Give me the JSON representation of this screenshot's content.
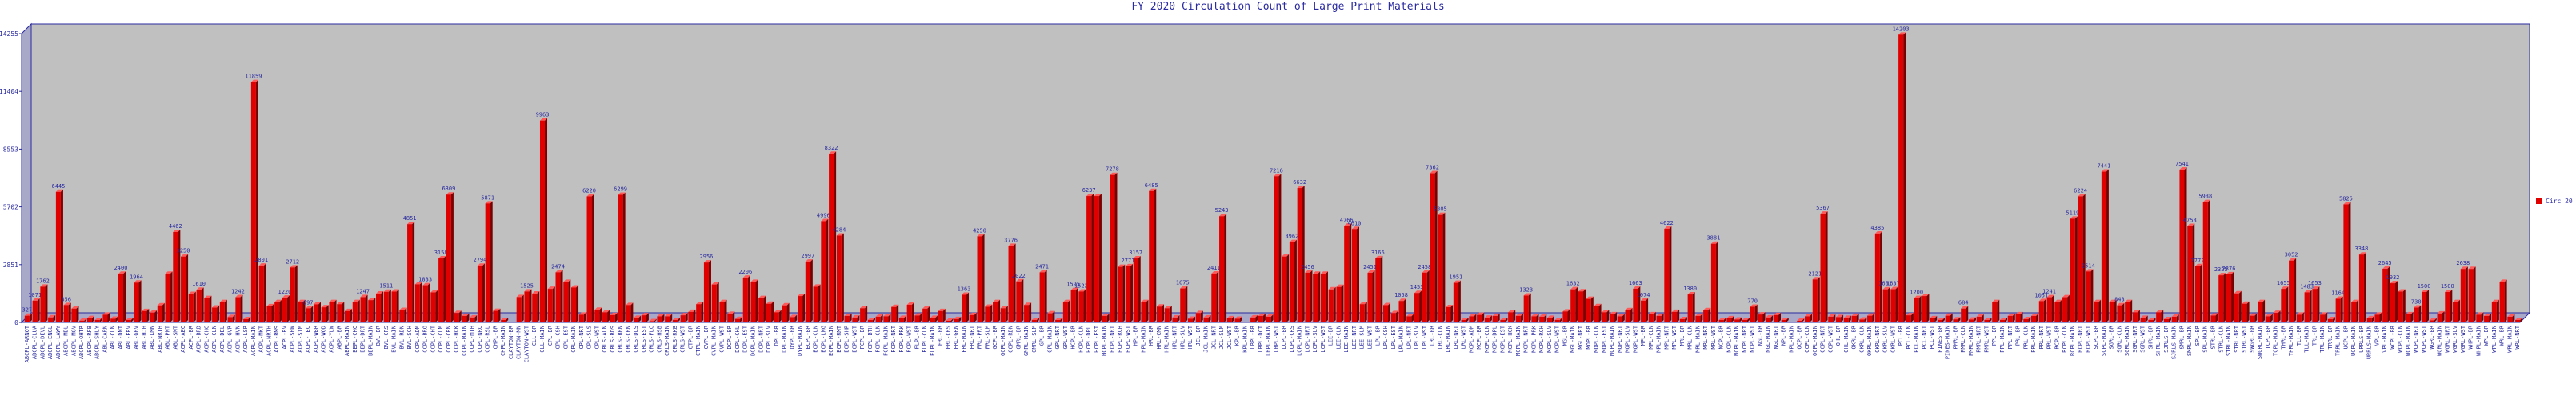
{
  "chart_data": {
    "type": "bar",
    "title": "FY 2020 Circulation Count of Large Print  Materials",
    "xlabel": "",
    "ylabel": "",
    "ylim": [
      0,
      14255
    ],
    "yticks": [
      "0",
      "2851",
      "5702",
      "8553",
      "11404",
      "14255"
    ],
    "grid": false,
    "legend_position": "right",
    "series": [
      {
        "name": "Circ 20",
        "color": "#e00000",
        "categories": [
          "ABCPL-ARNOT",
          "ABCPL-CLUA",
          "ABCPL-DEVL",
          "ABCPL-ENGL",
          "ABCPL-LAWY",
          "ABCPL-MDL",
          "ABCPL-MGV",
          "ABCPL-OHTR",
          "ABCPL-RFB",
          "ABCPL-SHLY",
          "ABL-CARN",
          "ABL-CLN",
          "ABL-DNT",
          "ABL-ERV",
          "ABL-GRV",
          "ABL-HJH",
          "ABL-LMN",
          "ABL-NRTH",
          "ABL-PNT",
          "ABL-SMT",
          "ACPL-AEC",
          "ACPL-BR",
          "ACPL-BRD",
          "ACPL-CHC",
          "ACPL-CLN",
          "ACPL-DEL",
          "ACPL-GVR",
          "ACPL-HVN",
          "ACPL-LSR",
          "ACPL-MAIN",
          "ACPL-MKT",
          "ACPL-NRTH",
          "ACPL-RMS",
          "ACPL-RV",
          "ACPL-SHW",
          "ACPL-STM",
          "ACPL-TEC",
          "ACPL-WBR",
          "ACPL-WOD",
          "ACPL-YLW",
          "ABPL-BR",
          "ABPL-MAIN",
          "BEPL-CHC",
          "BEPL-DRT",
          "BEPL-MAIN",
          "BVL-BR",
          "BVL-CRS",
          "BVL-MAIN",
          "BVL-RDN",
          "BVL-SCH",
          "CCPL-ADM",
          "CCPL-BRO",
          "CCPL-CHT",
          "CCPL-CLM",
          "CCPL-CRN",
          "CCPL-HCK",
          "CCPL-MAIN",
          "CCPL-MTH",
          "CCPL-NRC",
          "CCPL-RSL",
          "CHPL-BR",
          "CHPL-MAIN",
          "CLAYTON-BR",
          "CLAYTON-MN",
          "CLAYTON-WST",
          "CLL-BR",
          "CLL-MAIN",
          "CPL-BR",
          "CPL-CSH",
          "CPL-EST",
          "CPL-MAIN",
          "CPL-NRT",
          "CPL-SLS",
          "CPL-WST",
          "CRLS-ALN",
          "CRLS-BDS",
          "CRLS-BRN",
          "CRLS-CRN",
          "CRLS-DLS",
          "CRLS-EST",
          "CRLS-FLC",
          "CRLS-HSB",
          "CRLS-MAIN",
          "CRLS-RKB",
          "CRLS-WST",
          "CTPL-BR",
          "CTPL-MAIN",
          "CVPL-BR",
          "CVPL-MAIN",
          "CVPL-WST",
          "DCPL-BR",
          "DCPL-CHL",
          "DCPL-EST",
          "DCPL-MAIN",
          "DCPL-NRT",
          "DCPL-SLV",
          "DPL-BR",
          "DPL-MAIN",
          "DYPL-BR",
          "DYPL-MAIN",
          "ECPL-BR",
          "ECPL-CLN",
          "ECPL-LNG",
          "ECPL-MAIN",
          "ECPL-RMT",
          "ECPL-SHP",
          "ECPL-WST",
          "FCPL-BR",
          "FCPL-BTH",
          "FCPL-CLN",
          "FCPL-MAIN",
          "FCPL-NRT",
          "FCPL-PRK",
          "FCPL-WST",
          "FLPL-BR",
          "FLPL-CLN",
          "FLPL-MAIN",
          "FRL-BR",
          "FRL-CRS",
          "FRL-GRN",
          "FRL-MAIN",
          "FRL-NRT",
          "FRL-PRT",
          "FRL-SLM",
          "GCPL-BR",
          "GCPL-MAIN",
          "GCPL-RDN",
          "GMRL-BR",
          "GMRL-MAIN",
          "GMRL-SLM",
          "GPL-BR",
          "GPL-MAIN",
          "GPL-NRT",
          "GPL-WST",
          "HCPL-BR",
          "HCPL-CLN",
          "HCPL-DPL",
          "HCPL-EST",
          "HCPL-MAIN",
          "HCPL-NRT",
          "HCPL-RCH",
          "HCPL-WST",
          "HPL-BR",
          "HPL-MAIN",
          "HRL-BR",
          "HRL-CMN",
          "HRL-MAIN",
          "HRL-NRT",
          "HRL-SLV",
          "HRL-WST",
          "JCL-BR",
          "JCL-MAIN",
          "JCL-NRT",
          "JCL-SLM",
          "JCL-WST",
          "KPL-BR",
          "KPL-MAIN",
          "LBPL-BR",
          "LBPL-DCT",
          "LBPL-MAIN",
          "LBPL-WST",
          "LCPL-BR",
          "LCPL-CRS",
          "LCPL-MAIN",
          "LCPL-NRT",
          "LCPL-SLV",
          "LCPL-WST",
          "LEE-BR",
          "LEE-CLN",
          "LEE-MAIN",
          "LEE-NRT",
          "LEE-SLM",
          "LEE-WST",
          "LPL-BR",
          "LPL-CSH",
          "LPL-EST",
          "LPL-MAIN",
          "LPL-NRT",
          "LPL-SLV",
          "LPL-WST",
          "LRL-BR",
          "LRL-CLN",
          "LRL-MAIN",
          "LRL-NRT",
          "LRL-WST",
          "MCPL-ADM",
          "MCPL-BR",
          "MCPL-CLN",
          "MCPL-DPL",
          "MCPL-EST",
          "MCPL-HCK",
          "MCPL-MAIN",
          "MCPL-NRT",
          "MCPL-PRK",
          "MCPL-RCH",
          "MCPL-SLV",
          "MCPL-WST",
          "MGL-BR",
          "MGL-MAIN",
          "MGL-NRT",
          "MOPL-BR",
          "MOPL-CLN",
          "MOPL-EST",
          "MOPL-MAIN",
          "MOPL-NRT",
          "MOPL-SLV",
          "MOPL-WST",
          "MPL-BR",
          "MPL-CLN",
          "MPL-MAIN",
          "MPL-NRT",
          "MPL-WST",
          "MRL-BR",
          "MRL-CLN",
          "MRL-MAIN",
          "MRL-NRT",
          "MRL-WST",
          "NCPL-BR",
          "NCPL-CLN",
          "NCPL-MAIN",
          "NCPL-NRT",
          "NCPL-WST",
          "NGL-BR",
          "NGL-MAIN",
          "NGL-NRT",
          "NPL-BR",
          "NPL-MAIN",
          "OCPL-BR",
          "OCPL-CLN",
          "OCPL-MAIN",
          "OCPL-NRT",
          "OCPL-WST",
          "OHL-BR",
          "OHL-MAIN",
          "OKRL-BR",
          "OKRL-CLN",
          "OKRL-MAIN",
          "OKRL-NRT",
          "OKRL-SLV",
          "OKRL-WST",
          "PCL-BR",
          "PCL-CLN",
          "PCL-MAIN",
          "PCL-NRT",
          "PCL-WST",
          "PINES-BR",
          "PINES-MAIN",
          "PMRL-BR",
          "PMRL-CLN",
          "PMRL-MAIN",
          "PMRL-NRT",
          "PMRL-WST",
          "PPL-BR",
          "PPL-MAIN",
          "PPL-NRT",
          "PRL-BR",
          "PRL-CLN",
          "PRL-MAIN",
          "PRL-NRT",
          "PRL-WST",
          "RCPL-BR",
          "RCPL-CLN",
          "RCPL-MAIN",
          "RCPL-NRT",
          "RCPL-WST",
          "SCPL-BR",
          "SCPL-MAIN",
          "SGRL-BR",
          "SGRL-CLN",
          "SGRL-MAIN",
          "SGRL-NRT",
          "SGRL-WST",
          "SHRL-BR",
          "SHRL-MAIN",
          "SJRLS-BR",
          "SJRLS-MAIN",
          "SMRL-BR",
          "SMRL-MAIN",
          "SPL-BR",
          "SPL-MAIN",
          "STRL-BR",
          "STRL-CLN",
          "STRL-MAIN",
          "STRL-NRT",
          "STRL-WST",
          "SWGRL-BR",
          "SWGRL-MAIN",
          "TCPL-BR",
          "TCPL-MAIN",
          "THRL-BR",
          "THRL-MAIN",
          "TLL-BR",
          "TLL-MAIN",
          "TRL-BR",
          "TRL-MAIN",
          "TRRL-BR",
          "TRRL-MAIN",
          "UCPL-BR",
          "UCPL-MAIN",
          "URRLS-BR",
          "URRLS-MAIN",
          "VPL-BR",
          "VPL-MAIN",
          "WCPL-BR",
          "WCPL-CLN",
          "WCPL-MAIN",
          "WCPL-NRT",
          "WCPL-WST",
          "WGRL-BR",
          "WGRL-MAIN",
          "WGRL-NRT",
          "WGRL-SLV",
          "WGRL-WST",
          "WHPL-BR",
          "WHPL-MAIN",
          "WPL-BR",
          "WPL-MAIN",
          "WRL-BR",
          "WRL-MAIN",
          "WRL-NRT"
        ],
        "values": [
          327,
          1071,
          1762,
          245,
          6445,
          856,
          682,
          85,
          210,
          120,
          380,
          180,
          2400,
          120,
          1964,
          560,
          480,
          840,
          2400,
          4462,
          3250,
          1400,
          1610,
          1200,
          730,
          1000,
          260,
          1242,
          160,
          11859,
          2801,
          795,
          1000,
          1220,
          2712,
          1000,
          697,
          890,
          745,
          1000,
          900,
          560,
          1000,
          1247,
          1100,
          1420,
          1511,
          1520,
          610,
          4851,
          1880,
          1833,
          1480,
          3158,
          6309,
          463,
          320,
          240,
          2794,
          5871,
          570,
          120,
          0,
          1250,
          1525,
          1420,
          9963,
          1654,
          2474,
          2000,
          1720,
          380,
          6220,
          620,
          500,
          360,
          6299,
          856,
          220,
          350,
          60,
          300,
          300,
          120,
          350,
          520,
          900,
          2956,
          1870,
          1000,
          420,
          170,
          2206,
          2000,
          1200,
          920,
          500,
          840,
          260,
          1300,
          2997,
          1760,
          4996,
          8322,
          4284,
          320,
          240,
          700,
          120,
          280,
          300,
          760,
          220,
          870,
          340,
          680,
          220,
          560,
          80,
          165,
          1363,
          360,
          4250,
          770,
          1000,
          700,
          3776,
          2022,
          860,
          120,
          2471,
          450,
          120,
          1000,
          1595,
          1522,
          6237,
          6237,
          320,
          7278,
          2740,
          2771,
          3157,
          1000,
          6485,
          780,
          700,
          240,
          1675,
          180,
          460,
          240,
          2411,
          5243,
          200,
          180,
          0,
          240,
          320,
          280,
          7216,
          3250,
          3962,
          6632,
          2456,
          2400,
          2400,
          1627,
          1750,
          4766,
          4610,
          900,
          2451,
          3166,
          850,
          460,
          1058,
          300,
          1453,
          2458,
          7362,
          5305,
          750,
          1951,
          120,
          300,
          370,
          230,
          320,
          120,
          500,
          320,
          1323,
          300,
          280,
          220,
          120,
          540,
          1632,
          1530,
          1160,
          800,
          500,
          400,
          300,
          600,
          1663,
          1074,
          400,
          320,
          4622,
          520,
          160,
          1380,
          320,
          600,
          3881,
          120,
          200,
          140,
          120,
          770,
          390,
          240,
          360,
          120,
          0,
          80,
          300,
          2121,
          5367,
          280,
          260,
          220,
          320,
          140,
          330,
          4385,
          1631,
          1637,
          14203,
          350,
          1200,
          1300,
          200,
          120,
          330,
          150,
          684,
          140,
          280,
          120,
          1000,
          120,
          320,
          400,
          160,
          320,
          1051,
          1241,
          1000,
          1241,
          5119,
          6224,
          2514,
          1000,
          7441,
          1000,
          843,
          1000,
          500,
          220,
          120,
          500,
          160,
          280,
          7541,
          4758,
          2772,
          5938,
          340,
          2325,
          2376,
          1430,
          920,
          330,
          1000,
          300,
          470,
          1655,
          3052,
          380,
          1483,
          1653,
          380,
          160,
          1164,
          5825,
          1000,
          3348,
          200,
          380,
          2645,
          1932,
          1520,
          400,
          730,
          1500,
          100,
          440,
          1500,
          1000,
          2638,
          2638,
          380,
          320,
          1000,
          2000,
          280,
          120
        ],
        "data_labels": [
          "327",
          "1071",
          "1762",
          "",
          "6445",
          "856",
          "",
          "",
          "",
          "",
          "",
          "",
          "2400",
          "",
          "1964",
          "",
          "",
          "",
          "",
          "4462",
          "3250",
          "",
          "1610",
          "",
          "",
          "",
          "",
          "1242",
          "",
          "11859",
          "2801",
          "",
          "",
          "1220",
          "2712",
          "",
          "697",
          "",
          "",
          "",
          "",
          "",
          "",
          "1247",
          "",
          "",
          "1511",
          "",
          "",
          "4851",
          "",
          "1833",
          "",
          "3158",
          "6309",
          "",
          "",
          "",
          "2794",
          "5871",
          "",
          "",
          "",
          "",
          "1525",
          "",
          "9963",
          "",
          "2474",
          "",
          "",
          "",
          "6220",
          "",
          "",
          "",
          "6299",
          "",
          "",
          "",
          "",
          "",
          "",
          "",
          "",
          "",
          "",
          "2956",
          "",
          "",
          "",
          "",
          "2206",
          "",
          "",
          "",
          "",
          "",
          "",
          "",
          "2997",
          "",
          "4996",
          "8322",
          "4284",
          "",
          "",
          "",
          "",
          "",
          "",
          "",
          "",
          "",
          "",
          "",
          "",
          "",
          "",
          "",
          "1363",
          "",
          "4250",
          "",
          "",
          "",
          "3776",
          "2022",
          "",
          "",
          "2471",
          "",
          "",
          "",
          "1595",
          "1522",
          "6237",
          "",
          "",
          "7278",
          "",
          "2771",
          "3157",
          "",
          "6485",
          "",
          "",
          "",
          "1675",
          "",
          "",
          "",
          "2411",
          "5243",
          "",
          "",
          "",
          "",
          "",
          "",
          "7216",
          "",
          "3962",
          "6632",
          "2456",
          "",
          "",
          "",
          "",
          "4766",
          "4610",
          "",
          "2451",
          "3166",
          "",
          "",
          "1058",
          "",
          "1453",
          "2458",
          "7362",
          "5305",
          "",
          "1951",
          "",
          "",
          "",
          "",
          "",
          "",
          "",
          "",
          "1323",
          "",
          "",
          "",
          "",
          "",
          "1632",
          "",
          "",
          "",
          "",
          "",
          "",
          "",
          "1663",
          "1074",
          "",
          "",
          "4622",
          "",
          "",
          "1380",
          "",
          "",
          "3881",
          "",
          "",
          "",
          "",
          "770",
          "",
          "",
          "",
          "",
          "",
          "",
          "",
          "2121",
          "5367",
          "",
          "",
          "",
          "",
          "",
          "",
          "4385",
          "1631",
          "1637",
          "14203",
          "",
          "1200",
          "",
          "",
          "",
          "",
          "",
          "684",
          "",
          "",
          "",
          "",
          "",
          "",
          "",
          "",
          "",
          "1051",
          "1241",
          "",
          "",
          "5119",
          "6224",
          "2514",
          "",
          "7441",
          "",
          "843",
          "",
          "",
          "",
          "",
          "",
          "",
          "",
          "7541",
          "4758",
          "2772",
          "5938",
          "",
          "2325",
          "2376",
          "",
          "",
          "",
          "",
          "",
          "",
          "1655",
          "3052",
          "",
          "1483",
          "1653",
          "",
          "",
          "1164",
          "5825",
          "",
          "3348",
          "",
          "",
          "2645",
          "1932",
          "",
          "",
          "730",
          "1500",
          "",
          "",
          "1500",
          "",
          "2638",
          "",
          "",
          "",
          "",
          "",
          "",
          ""
        ]
      }
    ]
  }
}
